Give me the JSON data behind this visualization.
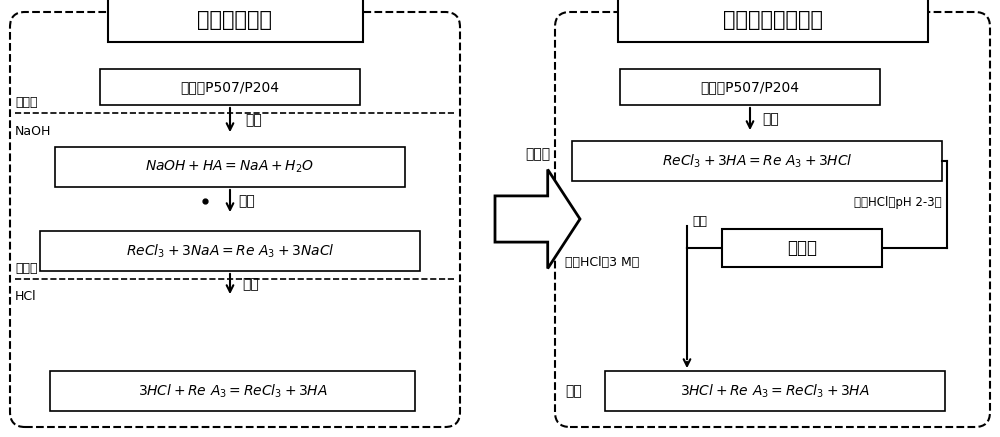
{
  "bg_color": "#ffffff",
  "left_title": "皂化萃取工艺",
  "right_title": "无皂化酸循环工艺",
  "middle_label": "新工艺",
  "left_box1": "萃取剂P507/P204",
  "left_label_base": "加入碱",
  "left_label_naoh": "NaOH",
  "left_step1": "皂化",
  "left_eq1": "$NaOH + HA = NaA+ H_{2}O$",
  "left_step2": "萃取",
  "left_eq2": "$ReCl_{3} + 3NaA = Re\\ A_{3} + 3NaCl$",
  "left_label_acid": "加入酸",
  "left_label_hcl": "HCl",
  "left_step3": "酸洗",
  "left_eq3": "$3HCl + Re\\ A_{3} = ReCl_{3} + 3HA$",
  "right_box1": "萃取剂P507/P204",
  "right_step1": "萃取",
  "right_eq1": "$ReCl_{3} + 3HA = Re\\ A_{3} + 3HCl$",
  "right_label_dilute": "低浓HCl（pH 2-3）",
  "right_label_make_acid": "补酸",
  "right_membrane": "膜分离",
  "right_label_conc": "高浓HCl（3 M）",
  "right_step3": "酸洗",
  "right_eq3": "$3HCl + Re\\ A_{3} = ReCl_{3} + 3HA$"
}
